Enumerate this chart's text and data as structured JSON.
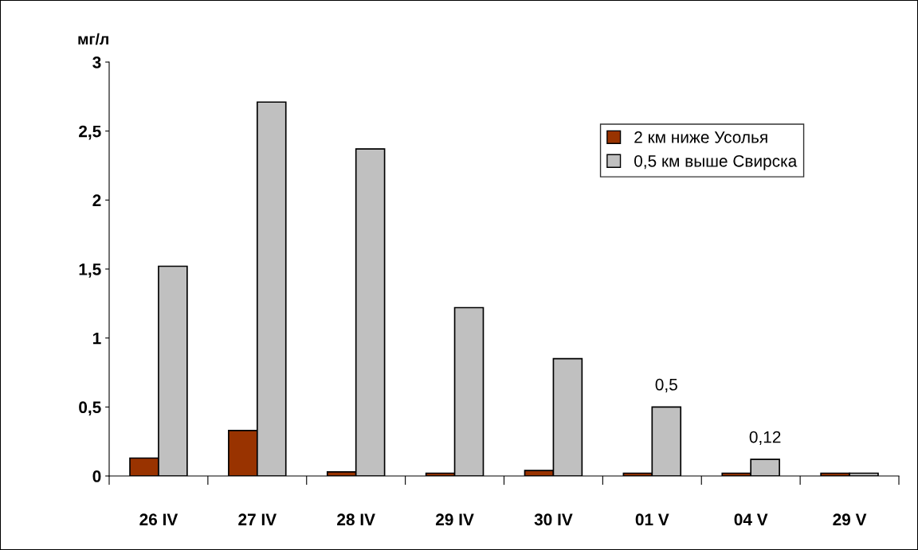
{
  "chart_data": {
    "type": "bar",
    "ylabel": "мг/л",
    "categories": [
      "26 IV",
      "27 IV",
      "28 IV",
      "29 IV",
      "30 IV",
      "01 V",
      "04 V",
      "29 V"
    ],
    "series": [
      {
        "name": "2 км ниже Усолья",
        "color": "#993300",
        "values": [
          0.13,
          0.33,
          0.03,
          0.02,
          0.04,
          0.02,
          0.02,
          0.02
        ]
      },
      {
        "name": "0,5 км выше Свирска",
        "color": "#c0c0c0",
        "values": [
          1.52,
          2.71,
          2.37,
          1.22,
          0.85,
          0.5,
          0.12,
          0.02
        ],
        "value_labels": [
          null,
          null,
          null,
          null,
          null,
          "0,5",
          "0,12",
          null
        ]
      }
    ],
    "ylim": [
      0,
      3
    ],
    "yticks": [
      0,
      {
        "value": 0.5,
        "label": "0,5"
      },
      1,
      {
        "value": 1.5,
        "label": "1,5"
      },
      2,
      {
        "value": 2.5,
        "label": "2,5"
      },
      3
    ],
    "grid": false,
    "legend": "top right"
  }
}
